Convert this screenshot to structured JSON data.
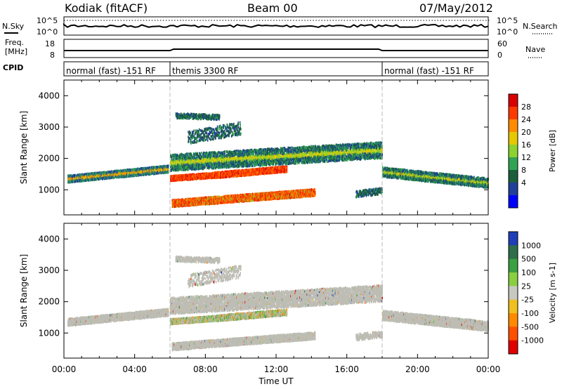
{
  "header": {
    "station": "Kodiak (fitACF)",
    "beam": "Beam 00",
    "date": "07/May/2012"
  },
  "side_labels": {
    "nsky": "N.Sky",
    "freq": "Freq.",
    "freq_unit": "[MHz]",
    "cpid": "CPID",
    "nsearch": "N.Search",
    "nave": "Nave"
  },
  "strip_ticks": {
    "noise_top": "10^5",
    "noise_bottom": "10^0",
    "freq_top": "18",
    "freq_bottom": "8",
    "nave_top": "60",
    "nave_bottom": "0"
  },
  "cpid_segments": [
    {
      "label": "normal (fast) -151 RF",
      "start_hour": 0
    },
    {
      "label": "themis 3300 RF",
      "start_hour": 6
    },
    {
      "label": "normal (fast) -151 RF",
      "start_hour": 18
    }
  ],
  "chart_data": [
    {
      "type": "heatmap",
      "name": "power",
      "ylabel": "Slant Range [km]",
      "xlabel": "",
      "xlim_hours": [
        0,
        24
      ],
      "ylim": [
        200,
        4500
      ],
      "yticks": [
        1000,
        2000,
        3000,
        4000
      ],
      "colorbar": {
        "label": "Power [dB]",
        "ticks": [
          28,
          24,
          20,
          16,
          12,
          8,
          4
        ],
        "colors": [
          "#d80000",
          "#ff3a00",
          "#ff8c00",
          "#e6c800",
          "#8cd230",
          "#31a354",
          "#1b5e3b",
          "#1f3f9a",
          "#0000ff"
        ]
      }
    },
    {
      "type": "heatmap",
      "name": "velocity",
      "ylabel": "Slant Range [km]",
      "xlabel": "Time UT",
      "xlim_hours": [
        0,
        24
      ],
      "ylim": [
        200,
        4500
      ],
      "yticks": [
        1000,
        2000,
        3000,
        4000
      ],
      "xticks": [
        "00:00",
        "04:00",
        "08:00",
        "12:00",
        "16:00",
        "20:00",
        "00:00"
      ],
      "colorbar": {
        "label": "Velocity [m s-1]",
        "ticks": [
          1000,
          500,
          100,
          25,
          -25,
          -100,
          -500,
          -1000
        ],
        "colors": [
          "#1f3fb8",
          "#2f6e4a",
          "#3aa040",
          "#88d040",
          "#c8c8c0",
          "#f0c020",
          "#ff8a00",
          "#ff5000",
          "#e00000"
        ]
      }
    }
  ],
  "colors": {
    "ground_scatter": "#bdbdb5",
    "frame": "#000000"
  }
}
